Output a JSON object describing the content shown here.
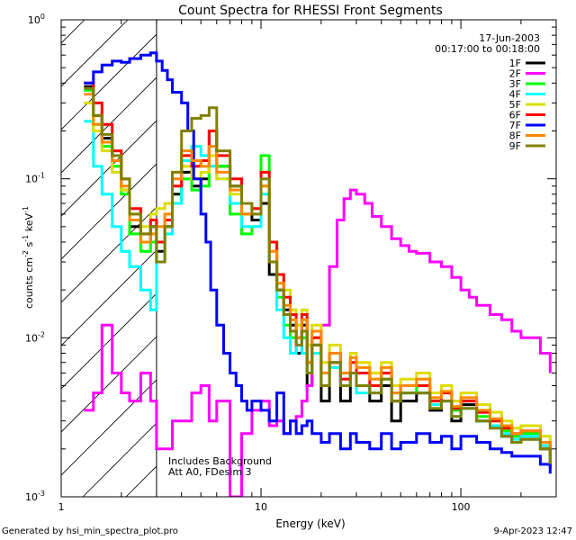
{
  "footer": {
    "generated_by": "Generated by hsi_min_spectra_plot.pro",
    "timestamp": "9-Apr-2023 12:47"
  },
  "chart_data": {
    "type": "line",
    "title": "Count Spectra for RHESSI Front Segments",
    "xlabel": "Energy (keV)",
    "ylabel_parts": {
      "base": "counts cm",
      "exp1": "-2",
      "mid1": " s",
      "exp2": "-1",
      "mid2": " keV",
      "exp3": "-1"
    },
    "xscale": "log",
    "yscale": "log",
    "xlim": [
      1.0,
      300.0
    ],
    "ylim": [
      0.001,
      1.0
    ],
    "x_ticks": [
      {
        "value": 1,
        "label": "1"
      },
      {
        "value": 10,
        "label": "10"
      },
      {
        "value": 100,
        "label": "100"
      }
    ],
    "y_ticks": [
      {
        "value": 1,
        "base": "10",
        "exp": "0"
      },
      {
        "value": 0.1,
        "base": "10",
        "exp": "-1"
      },
      {
        "value": 0.01,
        "base": "10",
        "exp": "-2"
      },
      {
        "value": 0.001,
        "base": "10",
        "exp": "-3"
      }
    ],
    "date": "17-Jun-2003",
    "time_range": "00:17:00 to 00:18:00",
    "annotations": [
      "Includes Background",
      "Att A0, FDesim 3"
    ],
    "hatch_region_x": [
      1.0,
      3.0
    ],
    "series": [
      {
        "name": "1F",
        "color": "#000000",
        "x": [
          1.3,
          1.45,
          1.6,
          1.8,
          2.0,
          2.2,
          2.5,
          2.8,
          3.0,
          3.3,
          3.6,
          4.0,
          4.5,
          5.0,
          5.5,
          6,
          7,
          8,
          9,
          10,
          11,
          12,
          13,
          14,
          15,
          16,
          17,
          18,
          20,
          22,
          25,
          28,
          30,
          35,
          40,
          45,
          50,
          60,
          70,
          80,
          90,
          100,
          120,
          140,
          160,
          180,
          200,
          250,
          280
        ],
        "y": [
          0.38,
          0.25,
          0.18,
          0.13,
          0.085,
          0.05,
          0.04,
          0.05,
          0.035,
          0.05,
          0.08,
          0.11,
          0.09,
          0.1,
          0.2,
          0.12,
          0.09,
          0.06,
          0.055,
          0.07,
          0.025,
          0.02,
          0.015,
          0.012,
          0.008,
          0.012,
          0.005,
          0.009,
          0.004,
          0.007,
          0.004,
          0.006,
          0.005,
          0.004,
          0.005,
          0.003,
          0.004,
          0.0045,
          0.0035,
          0.004,
          0.003,
          0.0038,
          0.003,
          0.0028,
          0.0024,
          0.0022,
          0.0023,
          0.002,
          0.0015
        ]
      },
      {
        "name": "2F",
        "color": "#ff00ff",
        "x": [
          1.3,
          1.45,
          1.6,
          1.8,
          2.0,
          2.2,
          2.5,
          2.8,
          3.0,
          3.3,
          3.6,
          4.0,
          4.5,
          5.0,
          5.5,
          6,
          7,
          8,
          9,
          10,
          11,
          12,
          13,
          14,
          15,
          16,
          17,
          18,
          20,
          22,
          24,
          26,
          28,
          30,
          33,
          36,
          40,
          45,
          50,
          55,
          60,
          70,
          80,
          90,
          100,
          110,
          120,
          140,
          160,
          180,
          200,
          250,
          280
        ],
        "y": [
          0.0035,
          0.0045,
          0.012,
          0.006,
          0.0045,
          0.004,
          0.006,
          0.004,
          0.002,
          0.002,
          0.003,
          0.003,
          0.0045,
          0.005,
          0.003,
          0.004,
          0.001,
          0.0025,
          0.0035,
          0.004,
          0.0028,
          0.003,
          0.0025,
          0.003,
          0.0032,
          0.004,
          0.005,
          0.008,
          0.012,
          0.028,
          0.055,
          0.075,
          0.085,
          0.08,
          0.07,
          0.058,
          0.05,
          0.042,
          0.038,
          0.035,
          0.034,
          0.03,
          0.028,
          0.024,
          0.02,
          0.018,
          0.016,
          0.014,
          0.013,
          0.011,
          0.01,
          0.008,
          0.006
        ]
      },
      {
        "name": "3F",
        "color": "#00ff00",
        "x": [
          1.3,
          1.45,
          1.6,
          1.8,
          2.0,
          2.2,
          2.5,
          2.8,
          3.0,
          3.3,
          3.6,
          4.0,
          4.5,
          5.0,
          5.5,
          6,
          7,
          8,
          9,
          10,
          11,
          12,
          13,
          14,
          15,
          16,
          17,
          18,
          20,
          22,
          25,
          28,
          30,
          35,
          40,
          45,
          50,
          60,
          70,
          80,
          90,
          100,
          120,
          140,
          160,
          180,
          200,
          250,
          280
        ],
        "y": [
          0.36,
          0.22,
          0.16,
          0.12,
          0.08,
          0.045,
          0.035,
          0.04,
          0.03,
          0.045,
          0.07,
          0.1,
          0.085,
          0.09,
          0.16,
          0.12,
          0.06,
          0.045,
          0.05,
          0.14,
          0.04,
          0.018,
          0.012,
          0.01,
          0.012,
          0.01,
          0.007,
          0.01,
          0.006,
          0.008,
          0.006,
          0.007,
          0.005,
          0.005,
          0.006,
          0.004,
          0.0045,
          0.005,
          0.004,
          0.0045,
          0.0035,
          0.004,
          0.0032,
          0.003,
          0.0026,
          0.0024,
          0.0025,
          0.0022,
          0.0018
        ]
      },
      {
        "name": "4F",
        "color": "#00ffff",
        "x": [
          1.3,
          1.45,
          1.6,
          1.8,
          2.0,
          2.2,
          2.5,
          2.8,
          3.0,
          3.3,
          3.6,
          4.0,
          4.5,
          5.0,
          5.5,
          6,
          7,
          8,
          9,
          10,
          11,
          12,
          13,
          14,
          15,
          16,
          17,
          18,
          20,
          22,
          25,
          28,
          30,
          35,
          40,
          45,
          50,
          60,
          70,
          80,
          90,
          100,
          120,
          140,
          160,
          180,
          200,
          250,
          280
        ],
        "y": [
          0.23,
          0.12,
          0.08,
          0.05,
          0.035,
          0.028,
          0.02,
          0.015,
          0.03,
          0.045,
          0.07,
          0.13,
          0.16,
          0.14,
          0.12,
          0.1,
          0.07,
          0.05,
          0.05,
          0.08,
          0.03,
          0.015,
          0.01,
          0.008,
          0.01,
          0.008,
          0.006,
          0.008,
          0.005,
          0.0065,
          0.005,
          0.006,
          0.0045,
          0.005,
          0.0055,
          0.004,
          0.0045,
          0.0045,
          0.0038,
          0.004,
          0.0032,
          0.0036,
          0.003,
          0.0028,
          0.0025,
          0.0023,
          0.0024,
          0.0021,
          0.0017
        ]
      },
      {
        "name": "5F",
        "color": "#dddd00",
        "x": [
          1.3,
          1.45,
          1.6,
          1.8,
          2.0,
          2.2,
          2.5,
          2.8,
          3.0,
          3.3,
          3.6,
          4.0,
          4.5,
          5.0,
          5.5,
          6,
          7,
          8,
          9,
          10,
          11,
          12,
          13,
          14,
          15,
          16,
          17,
          18,
          20,
          22,
          25,
          28,
          30,
          35,
          40,
          45,
          50,
          60,
          70,
          80,
          90,
          100,
          120,
          140,
          160,
          180,
          200,
          250,
          280
        ],
        "y": [
          0.3,
          0.2,
          0.15,
          0.11,
          0.085,
          0.06,
          0.05,
          0.06,
          0.065,
          0.07,
          0.09,
          0.12,
          0.1,
          0.11,
          0.14,
          0.1,
          0.08,
          0.06,
          0.065,
          0.09,
          0.035,
          0.025,
          0.02,
          0.015,
          0.012,
          0.015,
          0.009,
          0.012,
          0.007,
          0.009,
          0.006,
          0.008,
          0.007,
          0.006,
          0.007,
          0.005,
          0.0055,
          0.006,
          0.0045,
          0.005,
          0.004,
          0.0045,
          0.0038,
          0.0034,
          0.003,
          0.0027,
          0.0028,
          0.0024,
          0.002
        ]
      },
      {
        "name": "6F",
        "color": "#ff0000",
        "x": [
          1.3,
          1.45,
          1.6,
          1.8,
          2.0,
          2.2,
          2.5,
          2.8,
          3.0,
          3.3,
          3.6,
          4.0,
          4.5,
          5.0,
          5.5,
          6,
          7,
          8,
          9,
          10,
          11,
          12,
          13,
          14,
          15,
          16,
          17,
          18,
          20,
          22,
          25,
          28,
          30,
          35,
          40,
          45,
          50,
          60,
          70,
          80,
          90,
          100,
          120,
          140,
          160,
          180,
          200,
          250,
          280
        ],
        "y": [
          0.4,
          0.3,
          0.22,
          0.15,
          0.1,
          0.065,
          0.045,
          0.055,
          0.04,
          0.055,
          0.09,
          0.14,
          0.12,
          0.13,
          0.2,
          0.14,
          0.1,
          0.07,
          0.065,
          0.11,
          0.04,
          0.025,
          0.018,
          0.014,
          0.01,
          0.014,
          0.007,
          0.01,
          0.006,
          0.008,
          0.0055,
          0.007,
          0.006,
          0.005,
          0.006,
          0.004,
          0.005,
          0.005,
          0.004,
          0.0045,
          0.0036,
          0.004,
          0.0034,
          0.003,
          0.0027,
          0.0025,
          0.0026,
          0.0022,
          0.0018
        ]
      },
      {
        "name": "7F",
        "color": "#0000ff",
        "x": [
          1.3,
          1.45,
          1.6,
          1.8,
          2.0,
          2.2,
          2.5,
          2.8,
          3.0,
          3.2,
          3.4,
          3.6,
          4.0,
          4.3,
          4.6,
          5.0,
          5.3,
          5.6,
          6,
          6.5,
          7,
          7.5,
          8,
          8.5,
          9,
          10,
          11,
          12,
          13,
          14,
          15,
          16,
          17,
          18,
          20,
          22,
          25,
          28,
          30,
          35,
          40,
          45,
          50,
          60,
          70,
          80,
          90,
          100,
          120,
          140,
          160,
          180,
          200,
          250,
          280
        ],
        "y": [
          0.4,
          0.47,
          0.52,
          0.55,
          0.54,
          0.57,
          0.6,
          0.62,
          0.55,
          0.48,
          0.42,
          0.35,
          0.3,
          0.2,
          0.1,
          0.06,
          0.04,
          0.02,
          0.012,
          0.008,
          0.006,
          0.005,
          0.004,
          0.0035,
          0.004,
          0.0035,
          0.003,
          0.0045,
          0.0025,
          0.003,
          0.0025,
          0.0028,
          0.003,
          0.0025,
          0.0022,
          0.0025,
          0.002,
          0.0025,
          0.0022,
          0.002,
          0.0025,
          0.002,
          0.0022,
          0.0025,
          0.0022,
          0.0024,
          0.002,
          0.0024,
          0.0022,
          0.002,
          0.0019,
          0.0018,
          0.0018,
          0.0016,
          0.0014
        ]
      },
      {
        "name": "8F",
        "color": "#ff8800",
        "x": [
          1.3,
          1.45,
          1.6,
          1.8,
          2.0,
          2.2,
          2.5,
          2.8,
          3.0,
          3.3,
          3.6,
          4.0,
          4.5,
          5.0,
          5.5,
          6,
          7,
          8,
          9,
          10,
          11,
          12,
          13,
          14,
          15,
          16,
          17,
          18,
          20,
          22,
          25,
          28,
          30,
          35,
          40,
          45,
          50,
          60,
          70,
          80,
          90,
          100,
          120,
          140,
          160,
          180,
          200,
          250,
          280
        ],
        "y": [
          0.34,
          0.22,
          0.17,
          0.13,
          0.09,
          0.055,
          0.04,
          0.045,
          0.05,
          0.06,
          0.1,
          0.15,
          0.13,
          0.12,
          0.16,
          0.11,
          0.085,
          0.06,
          0.06,
          0.09,
          0.035,
          0.022,
          0.016,
          0.013,
          0.01,
          0.013,
          0.007,
          0.011,
          0.006,
          0.008,
          0.006,
          0.0075,
          0.0065,
          0.0055,
          0.0065,
          0.0045,
          0.005,
          0.0055,
          0.0042,
          0.0046,
          0.0037,
          0.0042,
          0.0035,
          0.0031,
          0.0028,
          0.0025,
          0.0026,
          0.0022,
          0.0018
        ]
      },
      {
        "name": "9F",
        "color": "#808000",
        "x": [
          1.3,
          1.45,
          1.6,
          1.8,
          2.0,
          2.2,
          2.5,
          2.8,
          3.0,
          3.3,
          3.6,
          4.0,
          4.5,
          5.0,
          5.5,
          6,
          7,
          8,
          9,
          10,
          11,
          12,
          13,
          14,
          15,
          16,
          17,
          18,
          20,
          22,
          25,
          28,
          30,
          35,
          40,
          45,
          50,
          60,
          70,
          80,
          90,
          100,
          120,
          140,
          160,
          180,
          200,
          250,
          280
        ],
        "y": [
          0.37,
          0.25,
          0.19,
          0.14,
          0.1,
          0.06,
          0.045,
          0.05,
          0.03,
          0.05,
          0.11,
          0.2,
          0.24,
          0.25,
          0.28,
          0.15,
          0.09,
          0.07,
          0.06,
          0.1,
          0.03,
          0.02,
          0.014,
          0.011,
          0.009,
          0.011,
          0.006,
          0.009,
          0.005,
          0.007,
          0.005,
          0.006,
          0.005,
          0.0045,
          0.0055,
          0.004,
          0.0045,
          0.0045,
          0.0036,
          0.004,
          0.0032,
          0.0036,
          0.003,
          0.0027,
          0.0024,
          0.0022,
          0.0023,
          0.002,
          0.0016
        ]
      }
    ]
  }
}
